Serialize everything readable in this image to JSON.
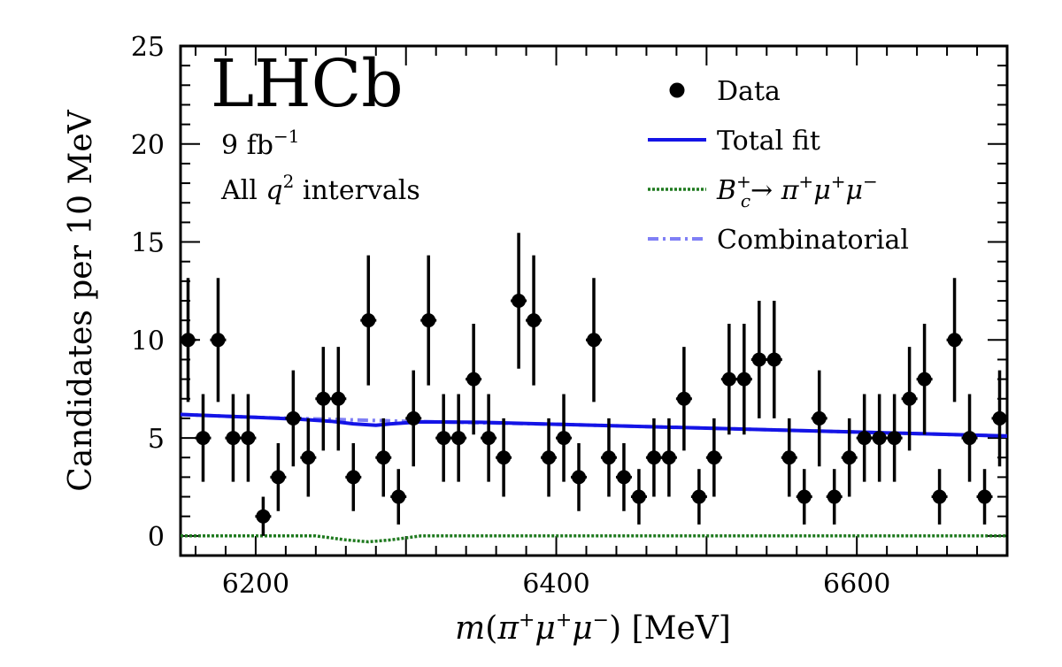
{
  "chart_data": {
    "type": "scatter",
    "title": "",
    "experiment_label": "LHCb",
    "luminosity_value": "9 fb",
    "luminosity_unit_exponent": "−1",
    "selection_prefix": "All ",
    "selection_variable": "q",
    "selection_exponent": "2",
    "selection_suffix": " intervals",
    "xlabel_m": "m",
    "xlabel_open": "(",
    "xlabel_pi": "π",
    "xlabel_mu": "μ",
    "xlabel_plus": "+",
    "xlabel_minus": "−",
    "xlabel_close": ")",
    "xlabel_unit": " [MeV]",
    "ylabel": "Candidates per 10 MeV",
    "xlim": [
      6150,
      6700
    ],
    "ylim": [
      -1,
      25
    ],
    "x_ticks": [
      "6200",
      "6400",
      "6600"
    ],
    "y_ticks": [
      "0",
      "5",
      "10",
      "15",
      "20",
      "25"
    ],
    "legend": {
      "placement": "top-right",
      "data_label": "Data",
      "total_fit_label": "Total fit",
      "signal_label_B": "B",
      "signal_label_sub": "c",
      "signal_label_sup": "+",
      "signal_label_arrow": "→",
      "signal_label_pi": "π",
      "signal_label_mu": "μ",
      "signal_label_plus": "+",
      "signal_label_minus": "−",
      "combinatorial_label": "Combinatorial"
    },
    "colors": {
      "data": "#000000",
      "total_fit": "#1414e6",
      "signal": "#1f7a1f",
      "combinatorial": "#7f7ff5"
    },
    "data": {
      "x": [
        6155,
        6165,
        6175,
        6185,
        6195,
        6205,
        6215,
        6225,
        6235,
        6245,
        6255,
        6265,
        6275,
        6285,
        6295,
        6305,
        6315,
        6325,
        6335,
        6345,
        6355,
        6365,
        6375,
        6385,
        6395,
        6405,
        6415,
        6425,
        6435,
        6445,
        6455,
        6465,
        6475,
        6485,
        6495,
        6505,
        6515,
        6525,
        6535,
        6545,
        6555,
        6565,
        6575,
        6585,
        6595,
        6605,
        6615,
        6625,
        6635,
        6645,
        6655,
        6665,
        6675,
        6685,
        6695
      ],
      "y": [
        10,
        5,
        10,
        5,
        5,
        1,
        3,
        6,
        4,
        7,
        7,
        3,
        11,
        4,
        2,
        6,
        11,
        5,
        5,
        8,
        5,
        4,
        12,
        11,
        4,
        5,
        3,
        10,
        4,
        3,
        2,
        4,
        4,
        7,
        2,
        4,
        8,
        8,
        9,
        9,
        4,
        2,
        6,
        2,
        4,
        5,
        5,
        5,
        7,
        8,
        2,
        10,
        5,
        2,
        6
      ]
    },
    "total_fit": {
      "x": [
        6150,
        6200,
        6230,
        6250,
        6265,
        6280,
        6290,
        6310,
        6350,
        6400,
        6500,
        6600,
        6700
      ],
      "y": [
        6.2,
        6.05,
        5.95,
        5.85,
        5.72,
        5.65,
        5.72,
        5.82,
        5.8,
        5.7,
        5.5,
        5.3,
        5.1
      ]
    },
    "signal": {
      "x": [
        6150,
        6240,
        6260,
        6275,
        6290,
        6310,
        6700
      ],
      "y": [
        0.0,
        0.0,
        -0.2,
        -0.3,
        -0.2,
        0.0,
        0.0
      ]
    },
    "combinatorial": {
      "x": [
        6150,
        6200,
        6300,
        6400,
        6500,
        6600,
        6700
      ],
      "y": [
        6.2,
        6.05,
        5.85,
        5.7,
        5.5,
        5.3,
        5.1
      ]
    }
  }
}
